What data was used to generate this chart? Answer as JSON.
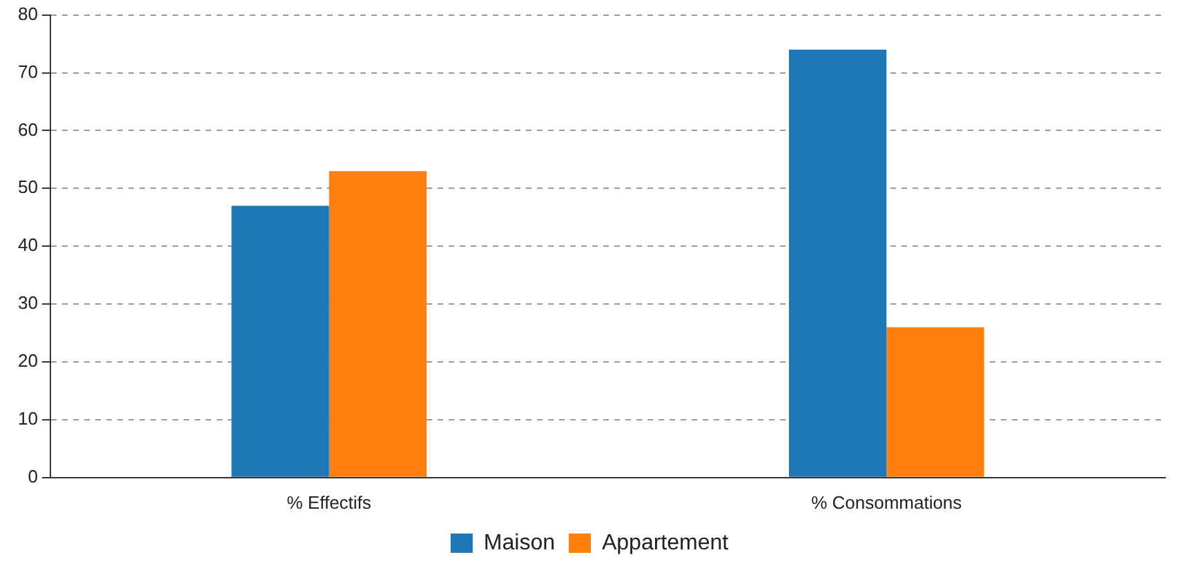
{
  "chart_data": {
    "type": "bar",
    "categories": [
      "% Effectifs",
      "% Consommations"
    ],
    "series": [
      {
        "name": "Maison",
        "color": "#1f77b4",
        "values": [
          47,
          74
        ]
      },
      {
        "name": "Appartement",
        "color": "#ff7f0e",
        "values": [
          53,
          26
        ]
      }
    ],
    "ylim": [
      0,
      80
    ],
    "yticks": [
      0,
      10,
      20,
      30,
      40,
      50,
      60,
      70,
      80
    ],
    "grid": "y",
    "legend": "bottom"
  }
}
